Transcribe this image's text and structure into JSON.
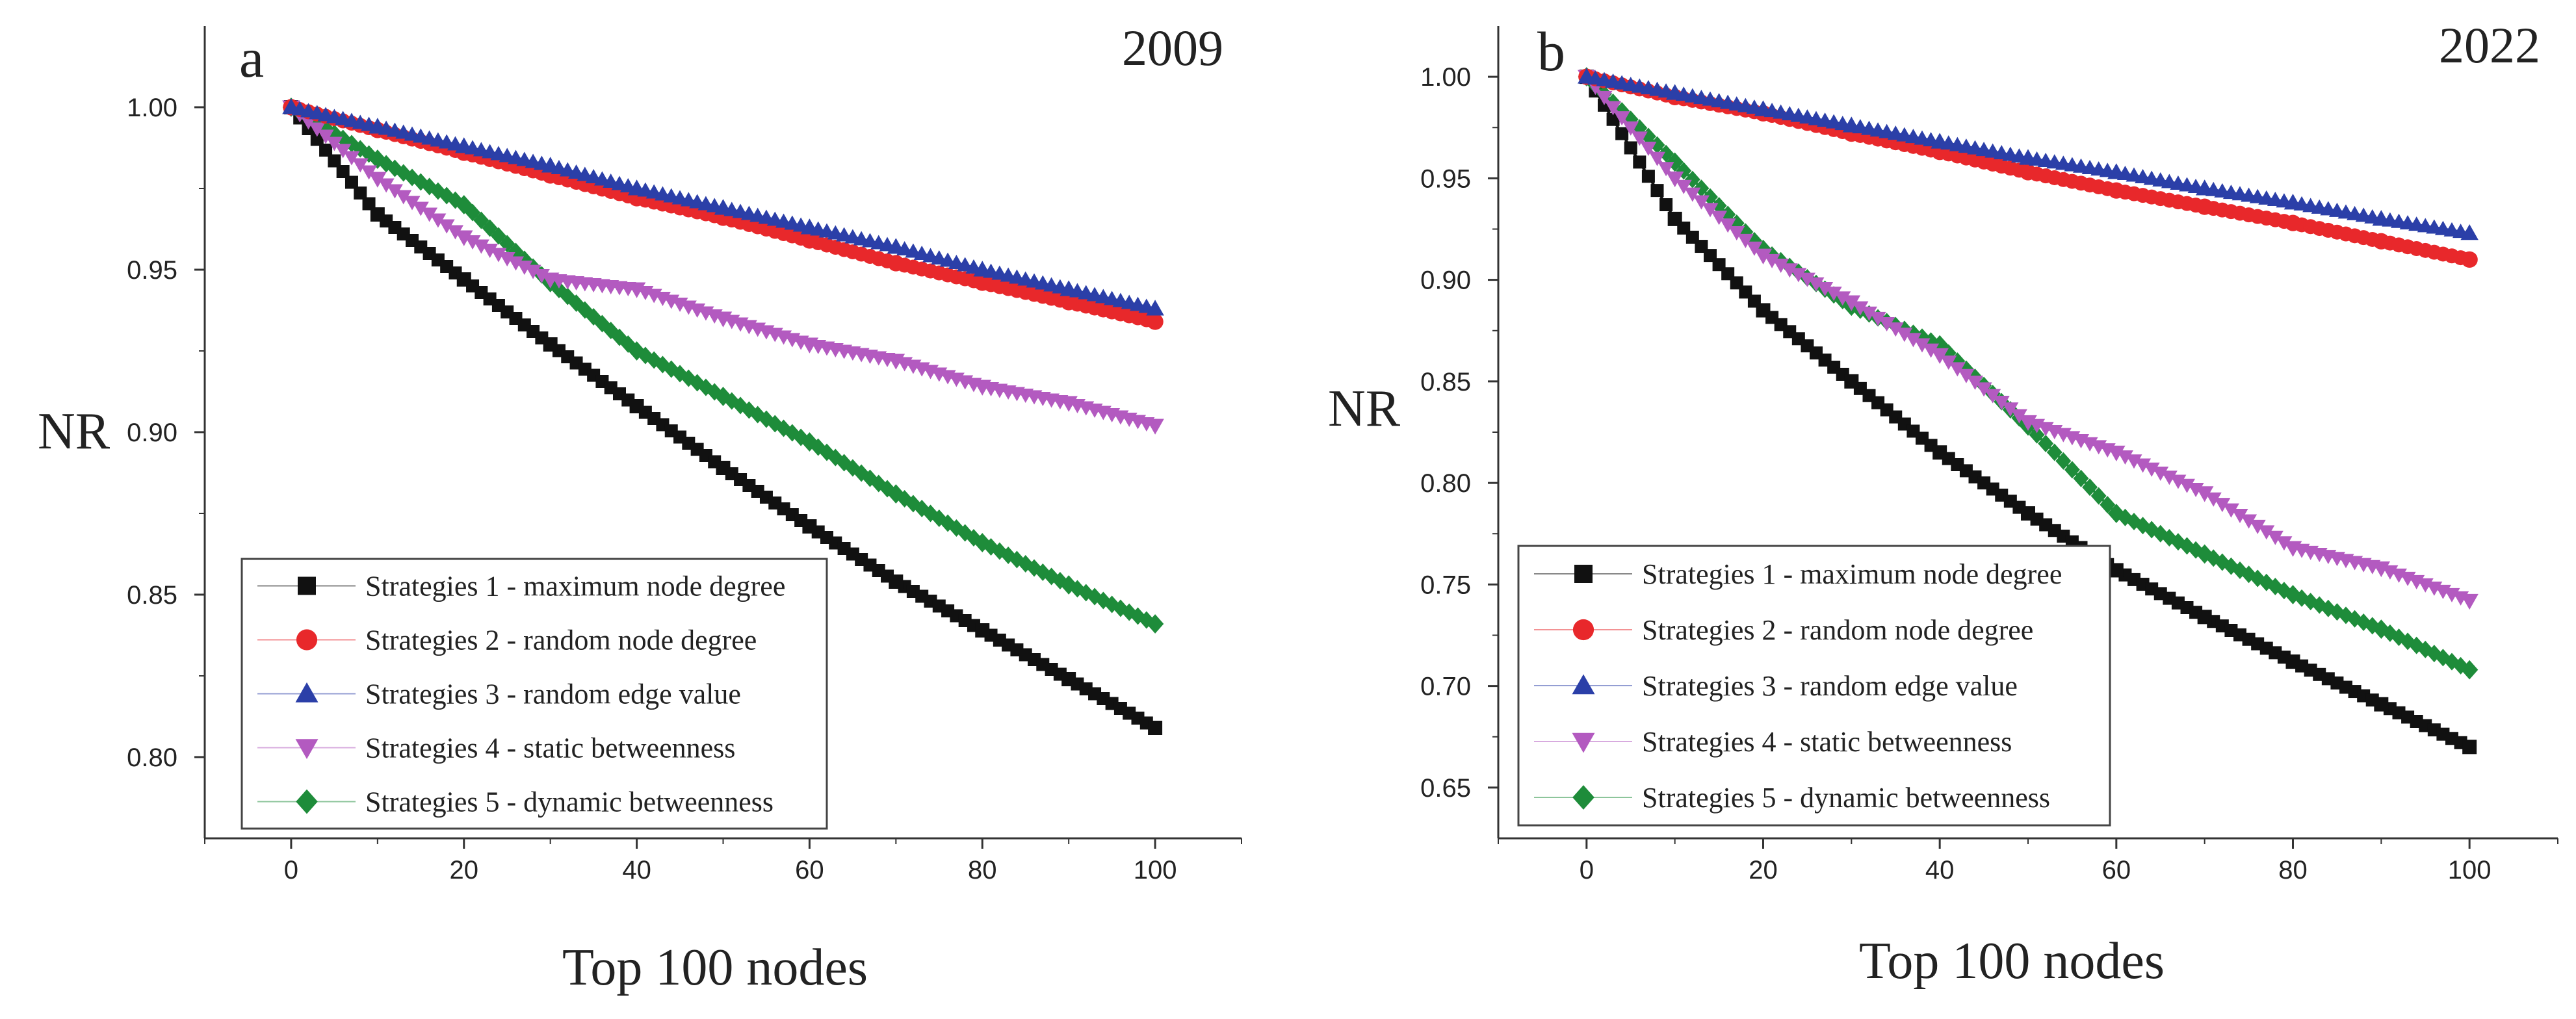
{
  "chart_data": [
    {
      "type": "line",
      "panel_label": "a",
      "year": "2009",
      "title": "2009",
      "xlabel": "Top 100 nodes",
      "ylabel": "NR",
      "xlim": [
        -10,
        110
      ],
      "ylim": [
        0.775,
        1.025
      ],
      "xticks": [
        0,
        20,
        40,
        60,
        80,
        100
      ],
      "yticks": [
        0.8,
        0.85,
        0.9,
        0.95,
        1.0
      ],
      "ytick_labels": [
        "0.80",
        "0.85",
        "0.90",
        "0.95",
        "1.00"
      ],
      "legend_position": "bottom-left",
      "x": [
        0,
        10,
        20,
        30,
        40,
        50,
        60,
        70,
        80,
        90,
        100
      ],
      "series": [
        {
          "name": "Strategies 1 - maximum node degree",
          "marker": "square",
          "color": "#111111",
          "values": [
            1.0,
            0.967,
            0.947,
            0.927,
            0.908,
            0.889,
            0.871,
            0.854,
            0.839,
            0.824,
            0.809
          ]
        },
        {
          "name": "Strategies 2 - random node degree",
          "marker": "circle",
          "color": "#e8282b",
          "values": [
            1.0,
            0.993,
            0.986,
            0.979,
            0.972,
            0.966,
            0.959,
            0.952,
            0.946,
            0.94,
            0.934
          ]
        },
        {
          "name": "Strategies 3 - random edge value",
          "marker": "triangle-up",
          "color": "#2b3fa8",
          "values": [
            1.0,
            0.994,
            0.988,
            0.982,
            0.975,
            0.969,
            0.963,
            0.957,
            0.95,
            0.944,
            0.938
          ]
        },
        {
          "name": "Strategies 4 - static betweenness",
          "marker": "triangle-down",
          "color": "#b35ac0",
          "values": [
            1.0,
            0.978,
            0.96,
            0.947,
            0.944,
            0.935,
            0.927,
            0.922,
            0.914,
            0.909,
            0.902
          ]
        },
        {
          "name": "Strategies 5 - dynamic betweenness",
          "marker": "diamond",
          "color": "#1e8c3a",
          "values": [
            1.0,
            0.984,
            0.97,
            0.946,
            0.925,
            0.911,
            0.897,
            0.881,
            0.866,
            0.853,
            0.841
          ]
        }
      ]
    },
    {
      "type": "line",
      "panel_label": "b",
      "year": "2022",
      "title": "2022",
      "xlabel": "Top 100 nodes",
      "ylabel": "NR",
      "xlim": [
        -10,
        110
      ],
      "ylim": [
        0.625,
        1.025
      ],
      "xticks": [
        0,
        20,
        40,
        60,
        80,
        100
      ],
      "yticks": [
        0.65,
        0.7,
        0.75,
        0.8,
        0.85,
        0.9,
        0.95,
        1.0
      ],
      "ytick_labels": [
        "0.65",
        "0.70",
        "0.75",
        "0.80",
        "0.85",
        "0.90",
        "0.95",
        "1.00"
      ],
      "legend_position": "bottom-left",
      "x": [
        0,
        10,
        20,
        30,
        40,
        50,
        60,
        70,
        80,
        90,
        100
      ],
      "series": [
        {
          "name": "Strategies 1 - maximum node degree",
          "marker": "square",
          "color": "#111111",
          "values": [
            1.0,
            0.93,
            0.885,
            0.85,
            0.815,
            0.785,
            0.757,
            0.734,
            0.712,
            0.691,
            0.67
          ]
        },
        {
          "name": "Strategies 2 - random node degree",
          "marker": "circle",
          "color": "#e8282b",
          "values": [
            1.0,
            0.99,
            0.982,
            0.972,
            0.963,
            0.953,
            0.944,
            0.936,
            0.928,
            0.919,
            0.91
          ]
        },
        {
          "name": "Strategies 3 - random edge value",
          "marker": "triangle-up",
          "color": "#2b3fa8",
          "values": [
            1.0,
            0.992,
            0.984,
            0.976,
            0.968,
            0.96,
            0.953,
            0.945,
            0.938,
            0.93,
            0.923
          ]
        },
        {
          "name": "Strategies 4 - static betweenness",
          "marker": "triangle-down",
          "color": "#b35ac0",
          "values": [
            1.0,
            0.95,
            0.912,
            0.889,
            0.863,
            0.83,
            0.815,
            0.795,
            0.768,
            0.758,
            0.742
          ]
        },
        {
          "name": "Strategies 5 - dynamic betweenness",
          "marker": "diamond",
          "color": "#1e8c3a",
          "values": [
            1.0,
            0.958,
            0.915,
            0.887,
            0.868,
            0.828,
            0.785,
            0.765,
            0.745,
            0.728,
            0.708
          ]
        }
      ]
    }
  ]
}
